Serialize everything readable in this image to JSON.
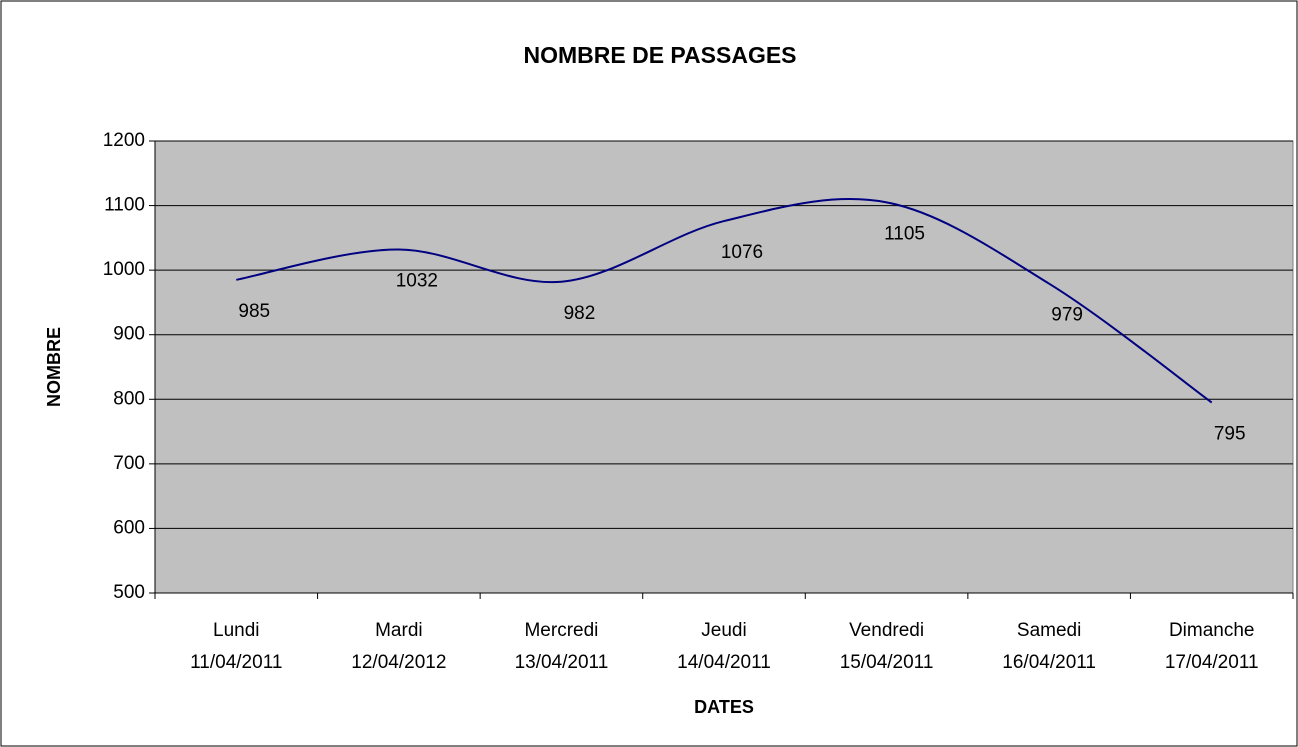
{
  "chart_data": {
    "type": "line",
    "title": "NOMBRE DE PASSAGES",
    "x_label": "DATES",
    "y_label": "NOMBRE",
    "categories": [
      [
        "Lundi",
        "11/04/2011"
      ],
      [
        "Mardi",
        "12/04/2012"
      ],
      [
        "Mercredi",
        "13/04/2011"
      ],
      [
        "Jeudi",
        "14/04/2011"
      ],
      [
        "Vendredi",
        "15/04/2011"
      ],
      [
        "Samedi",
        "16/04/2011"
      ],
      [
        "Dimanche",
        "17/04/2011"
      ]
    ],
    "values": [
      985,
      1032,
      982,
      1076,
      1105,
      979,
      795
    ],
    "color": "#000080",
    "plot_background": "#c0c0c0",
    "smooth": true,
    "ylim": [
      500,
      1200
    ],
    "yticks": [
      500,
      600,
      700,
      800,
      900,
      1000,
      1100,
      1200
    ],
    "grid": true
  }
}
